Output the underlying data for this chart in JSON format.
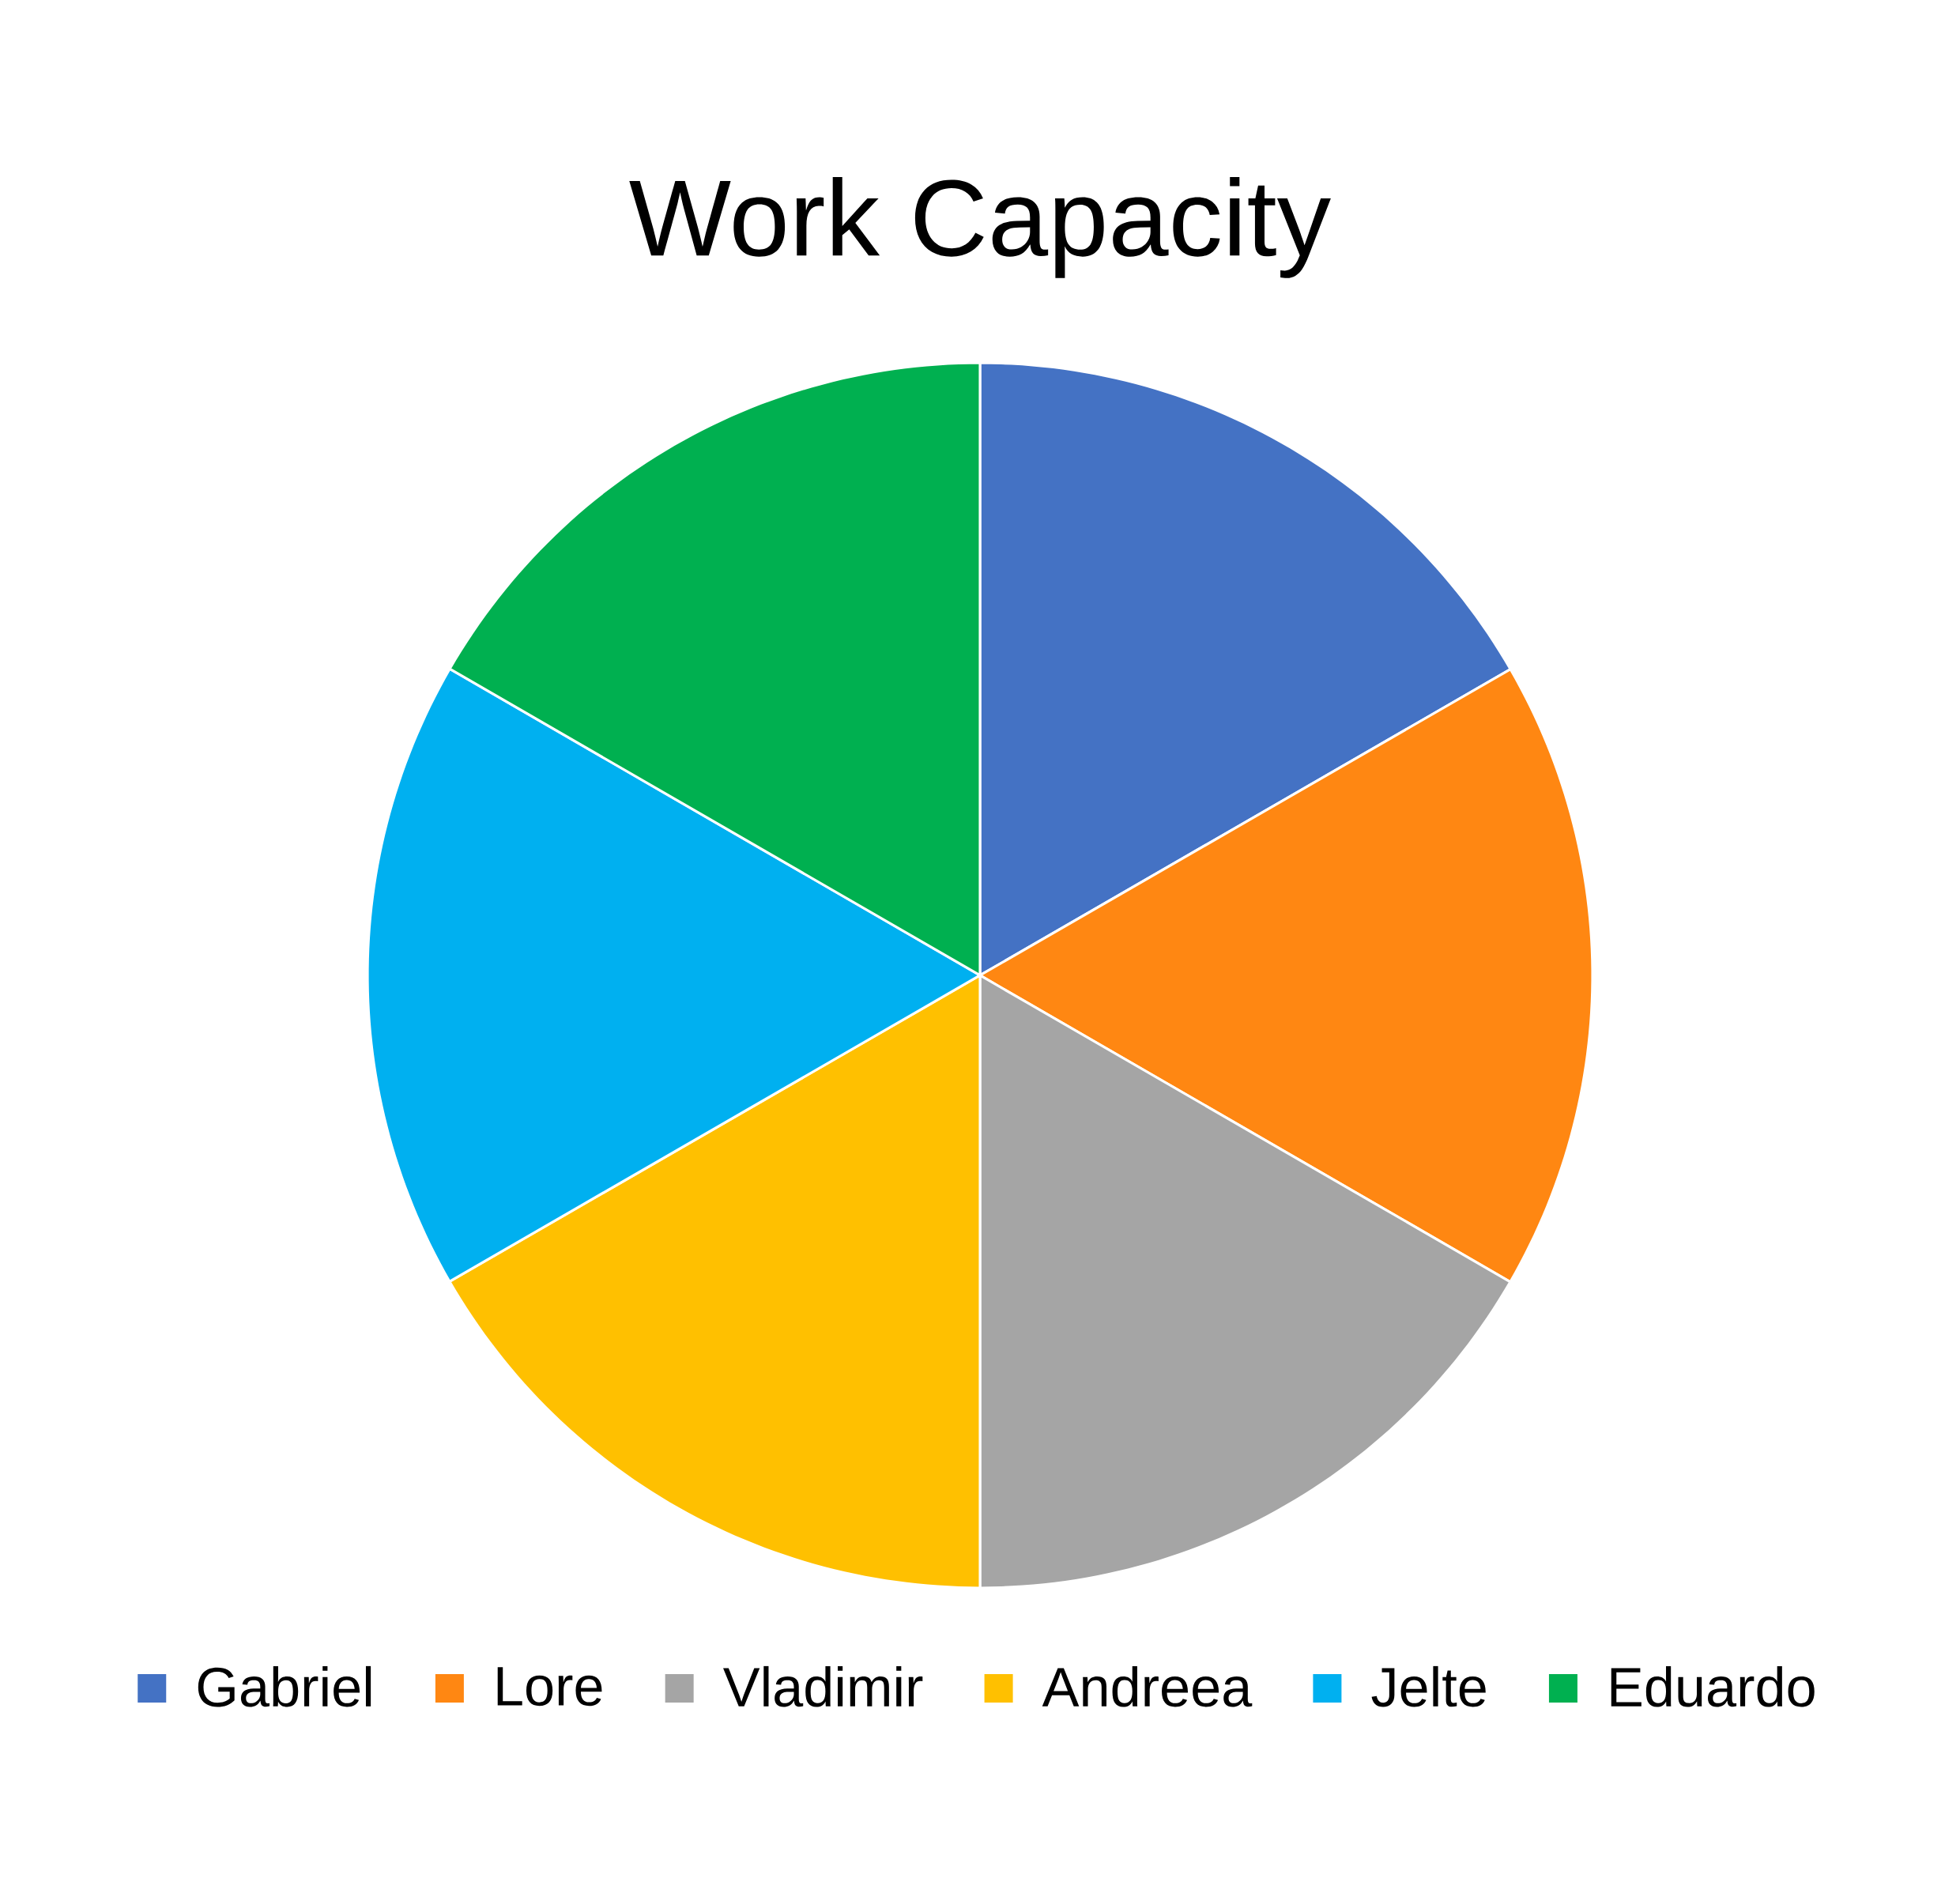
{
  "chart_data": {
    "type": "pie",
    "title": "Work Capacity",
    "categories": [
      "Gabriel",
      "Lore",
      "Vladimir",
      "Andreea",
      "Jelte",
      "Eduardo"
    ],
    "values": [
      16.67,
      16.67,
      16.66,
      16.67,
      16.67,
      16.66
    ],
    "colors": [
      "#4472c4",
      "#ff8712",
      "#a5a5a5",
      "#ffc000",
      "#00b0f0",
      "#00b050"
    ],
    "legend": "bottom"
  }
}
